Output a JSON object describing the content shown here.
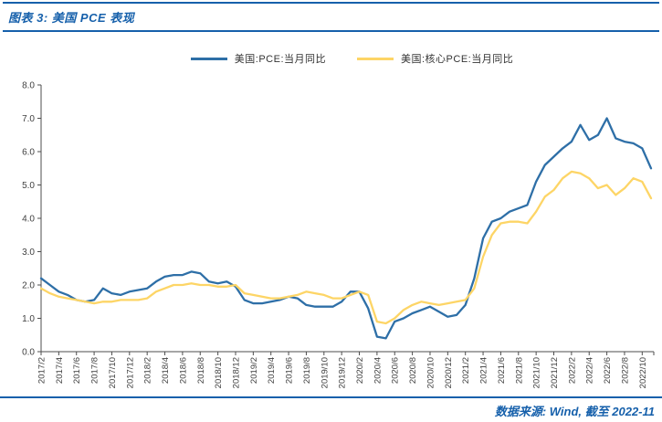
{
  "header": {
    "title": "图表 3: 美国 PCE 表现"
  },
  "legend": {
    "items": [
      {
        "label": "美国:PCE:当月同比"
      },
      {
        "label": "美国:核心PCE:当月同比"
      }
    ]
  },
  "footer": {
    "source": "数据来源: Wind, 截至 2022-11"
  },
  "colors": {
    "brand_blue": "#1660ab",
    "pce_line": "#2e6fa7",
    "core_pce_line": "#fdd566",
    "axis": "#4d4d4d",
    "tick_text": "#404040"
  },
  "chart_data": {
    "type": "line",
    "title": "",
    "xlabel": "",
    "ylabel": "",
    "ylim": [
      0.0,
      8.0
    ],
    "ytick_step": 1.0,
    "xtick_every": 2,
    "grid": false,
    "legend_position": "top",
    "x": [
      "2017/2",
      "2017/3",
      "2017/4",
      "2017/5",
      "2017/6",
      "2017/7",
      "2017/8",
      "2017/9",
      "2017/10",
      "2017/11",
      "2017/12",
      "2018/1",
      "2018/2",
      "2018/3",
      "2018/4",
      "2018/5",
      "2018/6",
      "2018/7",
      "2018/8",
      "2018/9",
      "2018/10",
      "2018/11",
      "2018/12",
      "2019/1",
      "2019/2",
      "2019/3",
      "2019/4",
      "2019/5",
      "2019/6",
      "2019/7",
      "2019/8",
      "2019/9",
      "2019/10",
      "2019/11",
      "2019/12",
      "2020/1",
      "2020/2",
      "2020/3",
      "2020/4",
      "2020/5",
      "2020/6",
      "2020/7",
      "2020/8",
      "2020/9",
      "2020/10",
      "2020/11",
      "2020/12",
      "2021/1",
      "2021/2",
      "2021/3",
      "2021/4",
      "2021/5",
      "2021/6",
      "2021/7",
      "2021/8",
      "2021/9",
      "2021/10",
      "2021/11",
      "2021/12",
      "2022/1",
      "2022/2",
      "2022/3",
      "2022/4",
      "2022/5",
      "2022/6",
      "2022/7",
      "2022/8",
      "2022/9",
      "2022/10",
      "2022/11"
    ],
    "series": [
      {
        "name": "美国:PCE:当月同比",
        "color": "#2e6fa7",
        "values": [
          2.2,
          2.0,
          1.8,
          1.7,
          1.55,
          1.5,
          1.55,
          1.9,
          1.75,
          1.7,
          1.8,
          1.85,
          1.9,
          2.1,
          2.25,
          2.3,
          2.3,
          2.4,
          2.35,
          2.1,
          2.05,
          2.1,
          1.95,
          1.55,
          1.45,
          1.45,
          1.5,
          1.55,
          1.65,
          1.6,
          1.4,
          1.35,
          1.35,
          1.35,
          1.5,
          1.8,
          1.8,
          1.3,
          0.45,
          0.4,
          0.9,
          1.0,
          1.15,
          1.25,
          1.35,
          1.2,
          1.05,
          1.1,
          1.4,
          2.2,
          3.4,
          3.9,
          4.0,
          4.2,
          4.3,
          4.4,
          5.1,
          5.6,
          5.85,
          6.1,
          6.3,
          6.8,
          6.35,
          6.5,
          7.0,
          6.4,
          6.3,
          6.25,
          6.1,
          5.5
        ]
      },
      {
        "name": "美国:核心PCE:当月同比",
        "color": "#fdd566",
        "values": [
          1.9,
          1.75,
          1.65,
          1.6,
          1.55,
          1.5,
          1.45,
          1.5,
          1.5,
          1.55,
          1.55,
          1.55,
          1.6,
          1.8,
          1.9,
          2.0,
          2.0,
          2.05,
          2.0,
          2.0,
          1.95,
          1.95,
          2.0,
          1.75,
          1.7,
          1.65,
          1.6,
          1.6,
          1.65,
          1.7,
          1.8,
          1.75,
          1.7,
          1.6,
          1.6,
          1.7,
          1.8,
          1.7,
          0.9,
          0.85,
          1.0,
          1.25,
          1.4,
          1.5,
          1.45,
          1.4,
          1.45,
          1.5,
          1.55,
          1.9,
          2.85,
          3.5,
          3.85,
          3.9,
          3.9,
          3.85,
          4.2,
          4.65,
          4.85,
          5.2,
          5.4,
          5.35,
          5.2,
          4.9,
          5.0,
          4.7,
          4.9,
          5.2,
          5.1,
          4.6
        ]
      }
    ]
  }
}
